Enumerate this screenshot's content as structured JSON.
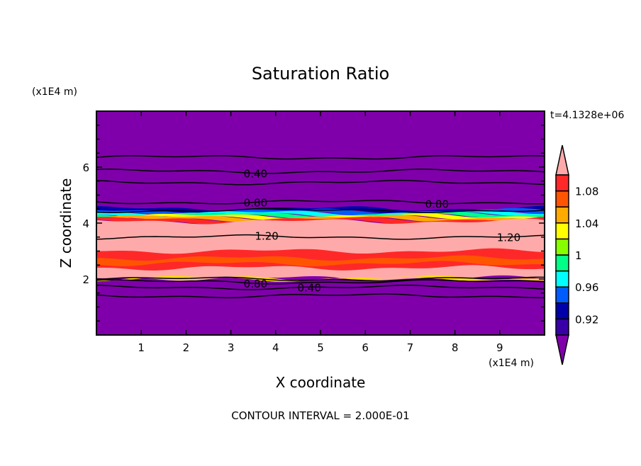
{
  "chart_data": {
    "type": "heatmap",
    "title": "Saturation Ratio",
    "xlabel": "X coordinate",
    "ylabel": "Z coordinate",
    "x_scale_label": "(x1E4 m)",
    "y_scale_label": "(x1E4 m)",
    "time_label": "t=4.1328e+06",
    "footer": "CONTOUR INTERVAL = 2.000E-01",
    "xlim": [
      0,
      10
    ],
    "ylim": [
      0,
      8
    ],
    "xticks": [
      "1",
      "2",
      "3",
      "4",
      "5",
      "6",
      "7",
      "8",
      "9"
    ],
    "yticks": [
      "2",
      "4",
      "6"
    ],
    "colorbar": {
      "levels": [
        0.9,
        0.92,
        0.94,
        0.96,
        0.98,
        1.0,
        1.02,
        1.04,
        1.06,
        1.08,
        1.1
      ],
      "tick_labels": [
        {
          "v": 0.92,
          "t": "0.92"
        },
        {
          "v": 0.96,
          "t": "0.96"
        },
        {
          "v": 1.0,
          "t": "1"
        },
        {
          "v": 1.04,
          "t": "1.04"
        },
        {
          "v": 1.08,
          "t": "1.08"
        }
      ],
      "colors": [
        "#3a00a8",
        "#0000aa",
        "#005cff",
        "#00ffff",
        "#00ff88",
        "#88ff00",
        "#ffff00",
        "#ffaa00",
        "#ff5500",
        "#ff2828"
      ],
      "under_color": "#7f00aa",
      "over_color": "#ffaaaa"
    },
    "bands": [
      {
        "z0": 0,
        "z1": 8,
        "color": "#7f00aa"
      },
      {
        "z0": 4.42,
        "z1": 4.52,
        "color": "#0000aa"
      },
      {
        "z0": 4.36,
        "z1": 4.44,
        "color": "#005cff"
      },
      {
        "z0": 4.3,
        "z1": 4.37,
        "color": "#00ffff"
      },
      {
        "z0": 4.25,
        "z1": 4.31,
        "color": "#00ff88"
      },
      {
        "z0": 4.2,
        "z1": 4.26,
        "color": "#ffff00"
      },
      {
        "z0": 4.13,
        "z1": 4.21,
        "color": "#ffaa00"
      },
      {
        "z0": 4.05,
        "z1": 4.14,
        "color": "#ff2828"
      },
      {
        "z0": 2.03,
        "z1": 4.06,
        "color": "#ffaaaa"
      },
      {
        "z0": 2.4,
        "z1": 3.0,
        "color": "#ff2828"
      },
      {
        "z0": 2.55,
        "z1": 2.75,
        "color": "#ff5500"
      },
      {
        "z0": 2.0,
        "z1": 2.04,
        "color": "#ffdd00"
      }
    ],
    "contours": [
      {
        "z": 6.35,
        "label": ""
      },
      {
        "z": 5.85,
        "label": "0.40",
        "lx": [
          3.55
        ]
      },
      {
        "z": 5.45,
        "label": ""
      },
      {
        "z": 4.75,
        "label": "0.80",
        "lx": [
          3.55,
          7.6
        ]
      },
      {
        "z": 4.45,
        "label": ""
      },
      {
        "z": 3.5,
        "label": "1.20",
        "lx": [
          3.8,
          9.2
        ]
      },
      {
        "z": 2.0,
        "label": ""
      },
      {
        "z": 1.9,
        "label": "0.80",
        "lx": [
          3.55
        ]
      },
      {
        "z": 1.7,
        "label": "0.40",
        "lx": [
          3.55
        ]
      },
      {
        "z": 1.4,
        "label": ""
      }
    ]
  }
}
